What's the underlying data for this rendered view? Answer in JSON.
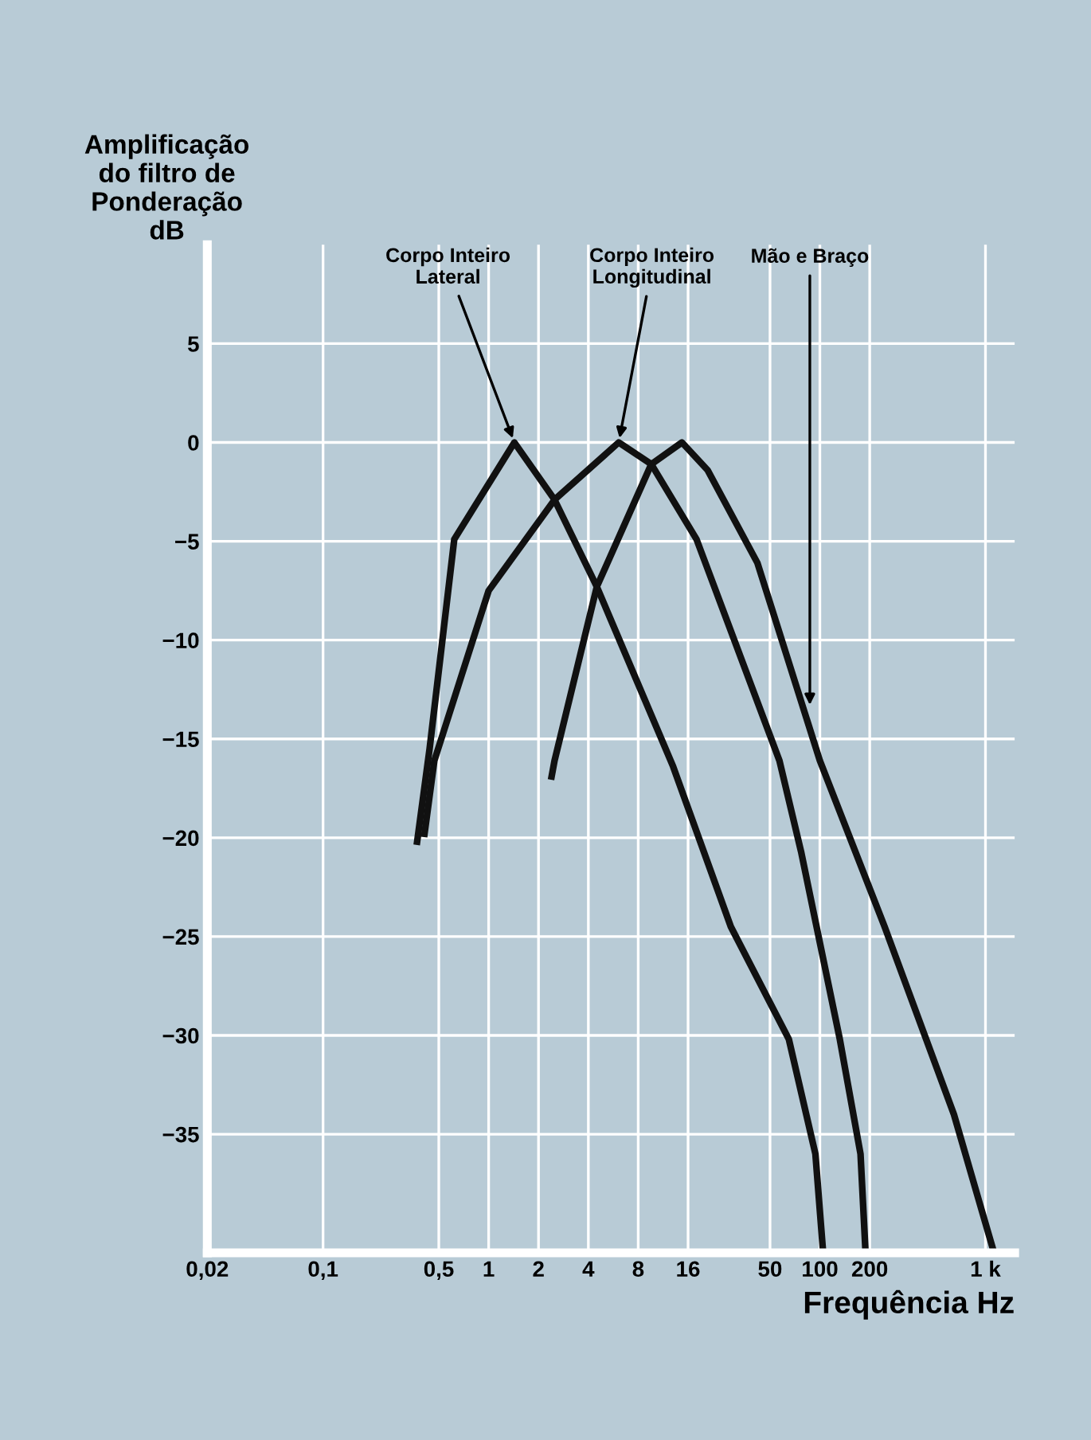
{
  "chart_data": {
    "type": "line",
    "ylabel": "Amplificação\ndo filtro de\nPonderação\ndB",
    "xlabel": "Frequência Hz",
    "log": "x",
    "series": [
      {
        "color": "#111111",
        "x": [
          0.37,
          0.44,
          0.62,
          1.43,
          2.5,
          4.5,
          13,
          29,
          65,
          94,
          104
        ],
        "values": [
          -20.2,
          -15.5,
          -4.9,
          0,
          -2.9,
          -7.3,
          -16.4,
          -24.5,
          -30.2,
          -36,
          -40.7
        ]
      },
      {
        "color": "#111111",
        "x": [
          0.41,
          0.47,
          1.0,
          2.5,
          6.1,
          9.6,
          18,
          57,
          77,
          132,
          176,
          188
        ],
        "values": [
          -19.8,
          -16.1,
          -7.5,
          -2.9,
          0,
          -1.1,
          -4.9,
          -16.1,
          -20.7,
          -30.2,
          -36,
          -40.7
        ]
      },
      {
        "color": "#111111",
        "x": [
          2.4,
          2.5,
          4.5,
          9.6,
          14.7,
          21,
          42,
          100,
          246,
          645,
          1100
        ],
        "values": [
          -16.9,
          -16.1,
          -7.3,
          -1.1,
          0,
          -1.4,
          -6.1,
          -16.1,
          -24.5,
          -34,
          -40.7
        ]
      }
    ],
    "annotations": [
      {
        "text": "Corpo Inteiro\nLateral",
        "x": 1.43,
        "y": 0
      },
      {
        "text": "Corpo Inteiro\nLongitudinal",
        "x": 6.1,
        "y": 0
      },
      {
        "text": "Mão e Braço",
        "x": 87,
        "y": -13.5
      }
    ],
    "xlim": [
      0.02,
      1500
    ],
    "xticks": [
      {
        "value": 0.02,
        "label": "0,02"
      },
      {
        "value": 0.1,
        "label": "0,1"
      },
      {
        "value": 0.5,
        "label": "0,5"
      },
      1,
      2,
      4,
      8,
      16,
      50,
      100,
      200,
      {
        "value": 1000,
        "label": "1 k"
      }
    ],
    "ylim": [
      -41,
      10
    ],
    "yticks": [
      5,
      0,
      -5,
      -10,
      -15,
      -20,
      -25,
      -30,
      -35
    ],
    "grid": true,
    "marker": "none",
    "line_style": "solid"
  }
}
